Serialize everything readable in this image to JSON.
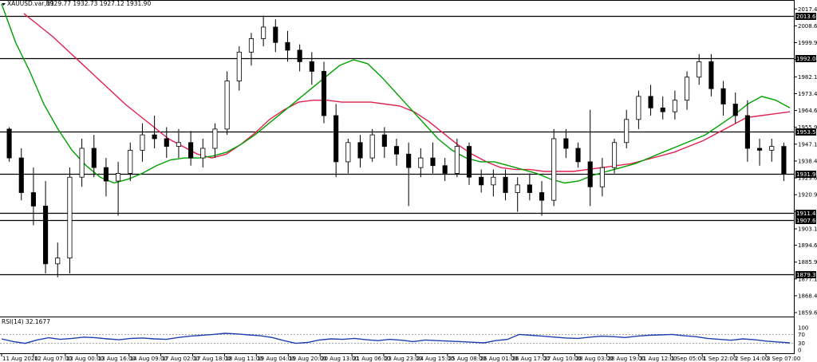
{
  "header": {
    "symbol_text": "XAUUSD.var,H1",
    "ohlc_text": "1929.77 1932.73 1927.12 1931.90"
  },
  "rsi_header": "RSI(14) 32.1677",
  "colors": {
    "candle": "#000000",
    "ma_fast": "#00a000",
    "ma_slow": "#e0204f",
    "rsi": "#1e3fb0",
    "level_line": "#000000",
    "level_label_bg": "#000000"
  },
  "chart_data": [
    {
      "type": "candlestick",
      "title": "",
      "symbol": "XAUUSD.var",
      "timeframe": "H1",
      "y_ticks": [
        "2017.40",
        "2008.65",
        "1999.90",
        "1991.15",
        "1982.15",
        "1973.40",
        "1964.65",
        "1955.90",
        "1947.15",
        "1938.40",
        "1929.65",
        "1920.90",
        "1912.15",
        "1903.15",
        "1894.65",
        "1885.90",
        "1877.15",
        "1868.40",
        "1859.65"
      ],
      "ylim": [
        1858,
        2020
      ],
      "x_ticks": [
        "11 Aug 2020",
        "12 Aug 07:00",
        "13 Aug 00:00",
        "13 Aug 16:00",
        "14 Aug 09:00",
        "17 Aug 02:00",
        "17 Aug 18:00",
        "18 Aug 11:00",
        "19 Aug 04:00",
        "19 Aug 20:00",
        "20 Aug 13:00",
        "21 Aug 06:00",
        "23 Aug 23:00",
        "24 Aug 15:00",
        "25 Aug 08:00",
        "26 Aug 01:00",
        "26 Aug 17:00",
        "27 Aug 10:00",
        "28 Aug 03:00",
        "28 Aug 19:00",
        "31 Aug 12:00",
        "1 Sep 05:00",
        "1 Sep 22:00",
        "2 Sep 14:00",
        "3 Sep 07:00"
      ],
      "levels": [
        "2013.60",
        "1992.03",
        "1953.55",
        "1931.90",
        "1911.40",
        "1907.69",
        "1879.39"
      ],
      "ma_fast_values": [
        2020,
        2000,
        1985,
        1968,
        1955,
        1944,
        1936,
        1930,
        1927,
        1929,
        1932,
        1936,
        1939,
        1940,
        1940,
        1941,
        1943,
        1947,
        1952,
        1958,
        1964,
        1970,
        1976,
        1982,
        1988,
        1991,
        1989,
        1982,
        1974,
        1966,
        1958,
        1950,
        1944,
        1940,
        1938,
        1938,
        1936,
        1934,
        1932,
        1929,
        1927,
        1928,
        1931,
        1933,
        1935,
        1937,
        1940,
        1943,
        1946,
        1949,
        1952,
        1957,
        1962,
        1968,
        1972,
        1970,
        1966
      ],
      "ma_slow_values": [
        2015,
        2009,
        2003,
        1996,
        1989,
        1982,
        1975,
        1968,
        1962,
        1956,
        1950,
        1946,
        1942,
        1940,
        1942,
        1947,
        1953,
        1960,
        1965,
        1969,
        1970,
        1970,
        1969,
        1969,
        1969,
        1968,
        1967,
        1964,
        1959,
        1953,
        1947,
        1942,
        1938,
        1935,
        1934,
        1934,
        1933,
        1933,
        1933,
        1934,
        1935,
        1936,
        1937,
        1939,
        1941,
        1943,
        1946,
        1949,
        1953,
        1957,
        1961,
        1962,
        1963,
        1964
      ],
      "candles": [
        [
          1955,
          1956,
          1938,
          1940
        ],
        [
          1940,
          1945,
          1918,
          1922
        ],
        [
          1922,
          1935,
          1905,
          1915
        ],
        [
          1915,
          1928,
          1880,
          1885
        ],
        [
          1885,
          1896,
          1878,
          1888
        ],
        [
          1888,
          1935,
          1880,
          1930
        ],
        [
          1930,
          1950,
          1925,
          1945
        ],
        [
          1945,
          1952,
          1930,
          1935
        ],
        [
          1935,
          1940,
          1920,
          1928
        ],
        [
          1928,
          1938,
          1910,
          1932
        ],
        [
          1932,
          1948,
          1928,
          1944
        ],
        [
          1944,
          1958,
          1938,
          1952
        ],
        [
          1952,
          1962,
          1945,
          1950
        ],
        [
          1950,
          1956,
          1940,
          1946
        ],
        [
          1946,
          1955,
          1940,
          1948
        ],
        [
          1948,
          1954,
          1936,
          1940
        ],
        [
          1940,
          1950,
          1935,
          1945
        ],
        [
          1945,
          1958,
          1940,
          1955
        ],
        [
          1955,
          1985,
          1952,
          1980
        ],
        [
          1980,
          1998,
          1975,
          1995
        ],
        [
          1995,
          2005,
          1988,
          2002
        ],
        [
          2002,
          2014,
          1998,
          2008
        ],
        [
          2008,
          2012,
          1995,
          2000
        ],
        [
          2000,
          2006,
          1990,
          1996
        ],
        [
          1996,
          1999,
          1985,
          1990
        ],
        [
          1990,
          1995,
          1978,
          1985
        ],
        [
          1985,
          1990,
          1958,
          1962
        ],
        [
          1962,
          1968,
          1930,
          1938
        ],
        [
          1938,
          1950,
          1932,
          1948
        ],
        [
          1948,
          1952,
          1935,
          1940
        ],
        [
          1940,
          1955,
          1938,
          1952
        ],
        [
          1952,
          1956,
          1940,
          1946
        ],
        [
          1946,
          1950,
          1936,
          1942
        ],
        [
          1942,
          1948,
          1915,
          1935
        ],
        [
          1935,
          1945,
          1930,
          1940
        ],
        [
          1940,
          1948,
          1932,
          1936
        ],
        [
          1936,
          1940,
          1928,
          1932
        ],
        [
          1932,
          1950,
          1930,
          1946
        ],
        [
          1946,
          1948,
          1926,
          1930
        ],
        [
          1930,
          1934,
          1922,
          1926
        ],
        [
          1926,
          1934,
          1920,
          1930
        ],
        [
          1930,
          1934,
          1918,
          1922
        ],
        [
          1922,
          1930,
          1912,
          1926
        ],
        [
          1926,
          1932,
          1918,
          1922
        ],
        [
          1922,
          1928,
          1910,
          1918
        ],
        [
          1918,
          1955,
          1915,
          1950
        ],
        [
          1950,
          1955,
          1940,
          1945
        ],
        [
          1945,
          1948,
          1935,
          1938
        ],
        [
          1938,
          1965,
          1915,
          1925
        ],
        [
          1925,
          1940,
          1920,
          1935
        ],
        [
          1935,
          1950,
          1932,
          1948
        ],
        [
          1948,
          1965,
          1945,
          1960
        ],
        [
          1960,
          1975,
          1955,
          1972
        ],
        [
          1972,
          1978,
          1962,
          1966
        ],
        [
          1966,
          1972,
          1960,
          1964
        ],
        [
          1964,
          1975,
          1960,
          1970
        ],
        [
          1970,
          1985,
          1965,
          1982
        ],
        [
          1982,
          1994,
          1978,
          1990
        ],
        [
          1990,
          1994,
          1972,
          1976
        ],
        [
          1976,
          1980,
          1962,
          1968
        ],
        [
          1968,
          1974,
          1958,
          1962
        ],
        [
          1962,
          1970,
          1938,
          1945
        ],
        [
          1945,
          1950,
          1936,
          1944
        ],
        [
          1944,
          1950,
          1938,
          1946
        ],
        [
          1946,
          1948,
          1928,
          1931.9
        ]
      ],
      "xlabel": "",
      "ylabel": "",
      "grid": false
    },
    {
      "type": "line",
      "title": "RSI(14) 32.1677",
      "y_ticks": [
        "100",
        "70",
        "30",
        "0"
      ],
      "ylim": [
        0,
        100
      ],
      "series": [
        {
          "name": "RSI(14)",
          "values": [
            50,
            38,
            30,
            45,
            55,
            48,
            52,
            58,
            55,
            50,
            46,
            52,
            54,
            50,
            48,
            56,
            62,
            66,
            70,
            75,
            72,
            68,
            64,
            56,
            42,
            30,
            34,
            45,
            50,
            48,
            52,
            46,
            42,
            48,
            44,
            38,
            45,
            42,
            40,
            38,
            35,
            32,
            42,
            48,
            70,
            66,
            62,
            58,
            54,
            52,
            58,
            62,
            60,
            56,
            62,
            66,
            68,
            70,
            64,
            60,
            52,
            48,
            44,
            50,
            46,
            40,
            36,
            32.17
          ]
        }
      ]
    }
  ]
}
